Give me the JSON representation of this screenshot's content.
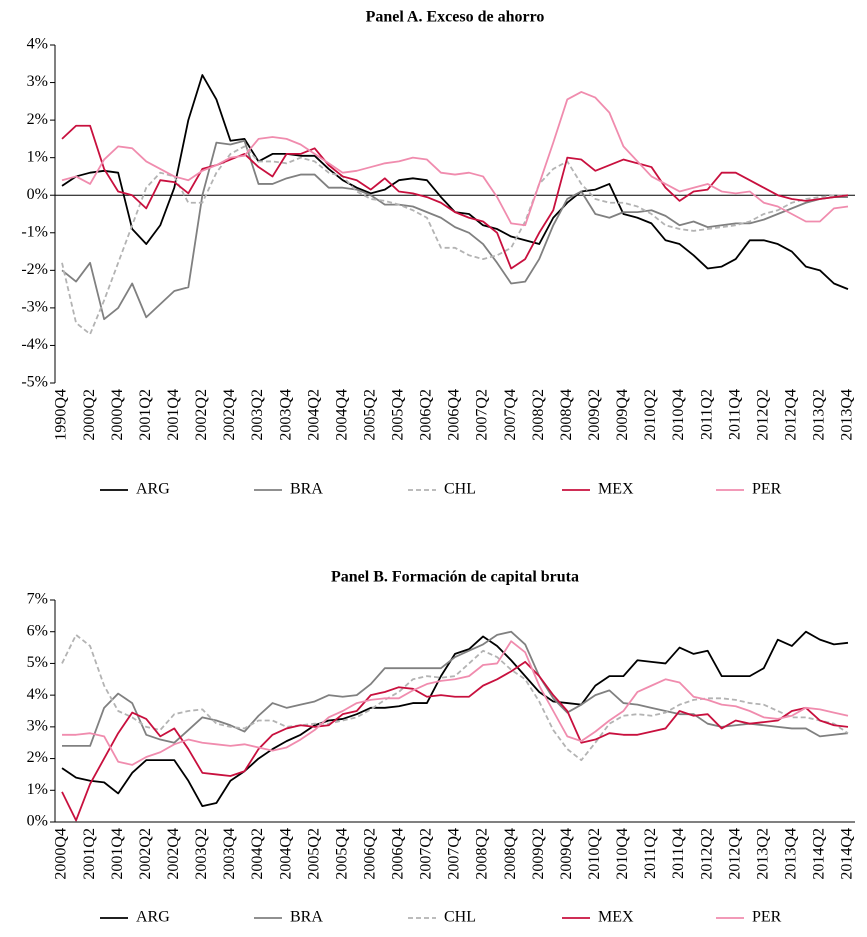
{
  "chart_data": [
    {
      "type": "line",
      "title": "Panel A. Exceso de ahorro",
      "categories": [
        "1990Q4",
        null,
        "2000Q2",
        null,
        "2000Q4",
        null,
        "2001Q2",
        null,
        "2001Q4",
        null,
        "2002Q2",
        null,
        "2002Q4",
        null,
        "2003Q2",
        null,
        "2003Q4",
        null,
        "2004Q2",
        null,
        "2004Q4",
        null,
        "2005Q2",
        null,
        "2005Q4",
        null,
        "2006Q2",
        null,
        "2006Q4",
        null,
        "2007Q2",
        null,
        "2007Q4",
        null,
        "2008Q2",
        null,
        "2008Q4",
        null,
        "2009Q2",
        null,
        "2009Q4",
        null,
        "2010Q2",
        null,
        "2010Q4",
        null,
        "2011Q2",
        null,
        "2011Q4",
        null,
        "2012Q2",
        null,
        "2012Q4",
        null,
        "2013Q2",
        null,
        "2013Q4"
      ],
      "ylim": [
        -5,
        4
      ],
      "yticks": [
        {
          "value": -5,
          "label": "-5%"
        },
        {
          "value": -4,
          "label": "-4%"
        },
        {
          "value": -3,
          "label": "-3%"
        },
        {
          "value": -2,
          "label": "-2%"
        },
        {
          "value": -1,
          "label": "-1%"
        },
        {
          "value": 0,
          "label": "0%"
        },
        {
          "value": 1,
          "label": "1%"
        },
        {
          "value": 2,
          "label": "2%"
        },
        {
          "value": 3,
          "label": "3%"
        },
        {
          "value": 4,
          "label": "4%"
        }
      ],
      "zero_line": true,
      "legend": "bottom",
      "series": [
        {
          "name": "ARG",
          "color": "#000000",
          "values": [
            0.25,
            0.5,
            0.6,
            0.65,
            0.6,
            -0.9,
            -1.3,
            -0.8,
            0.2,
            2.0,
            3.2,
            2.55,
            1.45,
            1.5,
            0.9,
            1.1,
            1.1,
            1.05,
            1.05,
            0.7,
            0.4,
            0.2,
            0.05,
            0.15,
            0.4,
            0.45,
            0.4,
            -0.05,
            -0.45,
            -0.5,
            -0.8,
            -0.9,
            -1.1,
            -1.2,
            -1.3,
            -0.6,
            -0.2,
            0.1,
            0.15,
            0.3,
            -0.5,
            -0.6,
            -0.75,
            -1.2,
            -1.3,
            -1.6,
            -1.95,
            -1.9,
            -1.7,
            -1.2,
            -1.2,
            -1.3,
            -1.5,
            -1.9,
            -2.0,
            -2.35,
            -2.5
          ]
        },
        {
          "name": "BRA",
          "color": "#808080",
          "values": [
            -2.0,
            -2.3,
            -1.8,
            -3.3,
            -3.0,
            -2.35,
            -3.25,
            -2.9,
            -2.55,
            -2.45,
            0.0,
            1.4,
            1.35,
            1.45,
            0.3,
            0.3,
            0.45,
            0.55,
            0.55,
            0.2,
            0.2,
            0.15,
            0.0,
            -0.25,
            -0.25,
            -0.3,
            -0.45,
            -0.6,
            -0.85,
            -1.0,
            -1.3,
            -1.8,
            -2.35,
            -2.3,
            -1.7,
            -0.8,
            -0.1,
            0.1,
            -0.5,
            -0.6,
            -0.45,
            -0.45,
            -0.4,
            -0.55,
            -0.8,
            -0.7,
            -0.85,
            -0.8,
            -0.75,
            -0.75,
            -0.65,
            -0.5,
            -0.35,
            -0.2,
            -0.1,
            -0.05,
            -0.05
          ]
        },
        {
          "name": "CHL",
          "color": "#b3b3b3",
          "line_style": "dashed",
          "values": [
            -1.8,
            -3.4,
            -3.7,
            -2.8,
            -1.8,
            -0.8,
            0.2,
            0.6,
            0.5,
            -0.2,
            -0.2,
            0.6,
            1.1,
            1.3,
            0.9,
            0.9,
            0.85,
            1.0,
            0.9,
            0.6,
            0.5,
            0.1,
            -0.1,
            -0.15,
            -0.25,
            -0.4,
            -0.6,
            -1.4,
            -1.4,
            -1.6,
            -1.7,
            -1.6,
            -1.4,
            -0.7,
            0.3,
            0.7,
            0.9,
            0.3,
            -0.1,
            -0.2,
            -0.2,
            -0.3,
            -0.5,
            -0.8,
            -0.9,
            -0.95,
            -0.9,
            -0.85,
            -0.8,
            -0.7,
            -0.5,
            -0.4,
            -0.2,
            -0.1,
            -0.05,
            0.0,
            0.0
          ]
        },
        {
          "name": "MEX",
          "color": "#c8103e",
          "values": [
            1.5,
            1.85,
            1.85,
            0.7,
            0.1,
            0.0,
            -0.35,
            0.4,
            0.35,
            0.05,
            0.7,
            0.8,
            0.95,
            1.1,
            0.75,
            0.5,
            1.1,
            1.1,
            1.25,
            0.8,
            0.5,
            0.4,
            0.15,
            0.45,
            0.1,
            0.05,
            -0.05,
            -0.2,
            -0.45,
            -0.6,
            -0.7,
            -1.0,
            -1.95,
            -1.7,
            -1.0,
            -0.4,
            1.0,
            0.95,
            0.65,
            0.8,
            0.95,
            0.85,
            0.75,
            0.2,
            -0.15,
            0.1,
            0.15,
            0.6,
            0.6,
            0.4,
            0.2,
            0.0,
            -0.1,
            -0.15,
            -0.1,
            -0.05,
            0.0
          ]
        },
        {
          "name": "PER",
          "color": "#f08cae",
          "values": [
            0.4,
            0.5,
            0.3,
            0.95,
            1.3,
            1.25,
            0.9,
            0.7,
            0.5,
            0.4,
            0.65,
            0.8,
            1.0,
            1.05,
            1.5,
            1.55,
            1.5,
            1.35,
            1.1,
            0.85,
            0.6,
            0.65,
            0.75,
            0.85,
            0.9,
            1.0,
            0.95,
            0.6,
            0.55,
            0.6,
            0.5,
            -0.05,
            -0.75,
            -0.8,
            0.3,
            1.4,
            2.55,
            2.75,
            2.6,
            2.2,
            1.3,
            0.9,
            0.5,
            0.3,
            0.1,
            0.2,
            0.3,
            0.1,
            0.05,
            0.1,
            -0.2,
            -0.3,
            -0.5,
            -0.7,
            -0.7,
            -0.35,
            -0.3
          ]
        }
      ]
    },
    {
      "type": "line",
      "title": "Panel B. Formación de capital bruta",
      "categories": [
        "2000Q4",
        null,
        "2001Q2",
        null,
        "2001Q4",
        null,
        "2002Q2",
        null,
        "2002Q4",
        null,
        "2003Q2",
        null,
        "2003Q4",
        null,
        "2004Q2",
        null,
        "2004Q4",
        null,
        "2005Q2",
        null,
        "2005Q4",
        null,
        "2006Q2",
        null,
        "2006Q4",
        null,
        "2007Q2",
        null,
        "2007Q4",
        null,
        "2008Q2",
        null,
        "2008Q4",
        null,
        "2009Q2",
        null,
        "2009Q4",
        null,
        "2010Q2",
        null,
        "2010Q4",
        null,
        "2011Q2",
        null,
        "2011Q4",
        null,
        "2012Q2",
        null,
        "2012Q4",
        null,
        "2013Q2",
        null,
        "2013Q4",
        null,
        "2014Q2",
        null,
        "2014Q4"
      ],
      "ylim": [
        0,
        7
      ],
      "yticks": [
        {
          "value": 0,
          "label": "0%"
        },
        {
          "value": 1,
          "label": "1%"
        },
        {
          "value": 2,
          "label": "2%"
        },
        {
          "value": 3,
          "label": "3%"
        },
        {
          "value": 4,
          "label": "4%"
        },
        {
          "value": 5,
          "label": "5%"
        },
        {
          "value": 6,
          "label": "6%"
        },
        {
          "value": 7,
          "label": "7%"
        }
      ],
      "zero_line": false,
      "legend": "bottom",
      "series": [
        {
          "name": "ARG",
          "color": "#000000",
          "values": [
            1.7,
            1.4,
            1.3,
            1.25,
            0.9,
            1.55,
            1.95,
            1.95,
            1.95,
            1.3,
            0.5,
            0.6,
            1.3,
            1.6,
            2.0,
            2.3,
            2.55,
            2.75,
            3.05,
            3.2,
            3.25,
            3.4,
            3.6,
            3.6,
            3.65,
            3.75,
            3.75,
            4.6,
            5.3,
            5.45,
            5.85,
            5.55,
            5.1,
            4.6,
            4.1,
            3.8,
            3.75,
            3.7,
            4.3,
            4.6,
            4.6,
            5.1,
            5.05,
            5.0,
            5.5,
            5.3,
            5.4,
            4.6,
            4.6,
            4.6,
            4.85,
            5.75,
            5.55,
            6.0,
            5.75,
            5.6,
            5.65
          ]
        },
        {
          "name": "BRA",
          "color": "#808080",
          "values": [
            2.4,
            2.4,
            2.4,
            3.6,
            4.05,
            3.75,
            2.75,
            2.6,
            2.5,
            2.9,
            3.3,
            3.2,
            3.05,
            2.85,
            3.35,
            3.75,
            3.6,
            3.7,
            3.8,
            4.0,
            3.95,
            4.0,
            4.35,
            4.85,
            4.85,
            4.85,
            4.85,
            4.85,
            5.2,
            5.4,
            5.6,
            5.9,
            6.0,
            5.6,
            4.6,
            3.9,
            3.45,
            3.7,
            4.0,
            4.15,
            3.75,
            3.7,
            3.6,
            3.5,
            3.4,
            3.4,
            3.1,
            3.0,
            3.05,
            3.1,
            3.05,
            3.0,
            2.95,
            2.95,
            2.7,
            2.75,
            2.8
          ]
        },
        {
          "name": "CHL",
          "color": "#b3b3b3",
          "line_style": "dashed",
          "values": [
            5.0,
            5.9,
            5.55,
            4.3,
            3.5,
            3.3,
            3.0,
            2.9,
            3.4,
            3.5,
            3.55,
            3.1,
            3.0,
            2.95,
            3.2,
            3.2,
            3.0,
            3.05,
            3.1,
            3.1,
            3.2,
            3.3,
            3.55,
            3.85,
            4.1,
            4.5,
            4.6,
            4.55,
            4.6,
            5.0,
            5.4,
            5.2,
            4.8,
            4.5,
            3.8,
            2.9,
            2.3,
            1.95,
            2.5,
            3.1,
            3.35,
            3.4,
            3.35,
            3.45,
            3.7,
            3.85,
            3.9,
            3.9,
            3.85,
            3.75,
            3.7,
            3.5,
            3.3,
            3.3,
            3.2,
            3.1,
            2.8
          ]
        },
        {
          "name": "MEX",
          "color": "#c8103e",
          "values": [
            0.95,
            0.05,
            1.2,
            2.0,
            2.8,
            3.45,
            3.25,
            2.7,
            2.95,
            2.3,
            1.55,
            1.5,
            1.45,
            1.6,
            2.3,
            2.75,
            2.95,
            3.05,
            3.0,
            3.05,
            3.4,
            3.5,
            4.0,
            4.1,
            4.25,
            4.2,
            3.95,
            4.0,
            3.95,
            3.95,
            4.3,
            4.5,
            4.75,
            5.05,
            4.6,
            4.0,
            3.5,
            2.5,
            2.6,
            2.8,
            2.75,
            2.75,
            2.85,
            2.95,
            3.5,
            3.35,
            3.4,
            2.95,
            3.2,
            3.1,
            3.15,
            3.2,
            3.5,
            3.6,
            3.2,
            3.05,
            3.0
          ]
        },
        {
          "name": "PER",
          "color": "#f08cae",
          "values": [
            2.75,
            2.75,
            2.8,
            2.7,
            1.9,
            1.8,
            2.05,
            2.2,
            2.45,
            2.6,
            2.5,
            2.45,
            2.4,
            2.45,
            2.35,
            2.25,
            2.35,
            2.6,
            2.9,
            3.3,
            3.5,
            3.75,
            3.85,
            3.9,
            3.9,
            4.15,
            4.35,
            4.45,
            4.5,
            4.6,
            4.95,
            5.0,
            5.7,
            5.35,
            4.3,
            3.5,
            2.7,
            2.55,
            2.85,
            3.2,
            3.5,
            4.1,
            4.3,
            4.5,
            4.4,
            3.95,
            3.85,
            3.7,
            3.65,
            3.5,
            3.3,
            3.25,
            3.35,
            3.6,
            3.55,
            3.45,
            3.35
          ]
        }
      ]
    }
  ]
}
